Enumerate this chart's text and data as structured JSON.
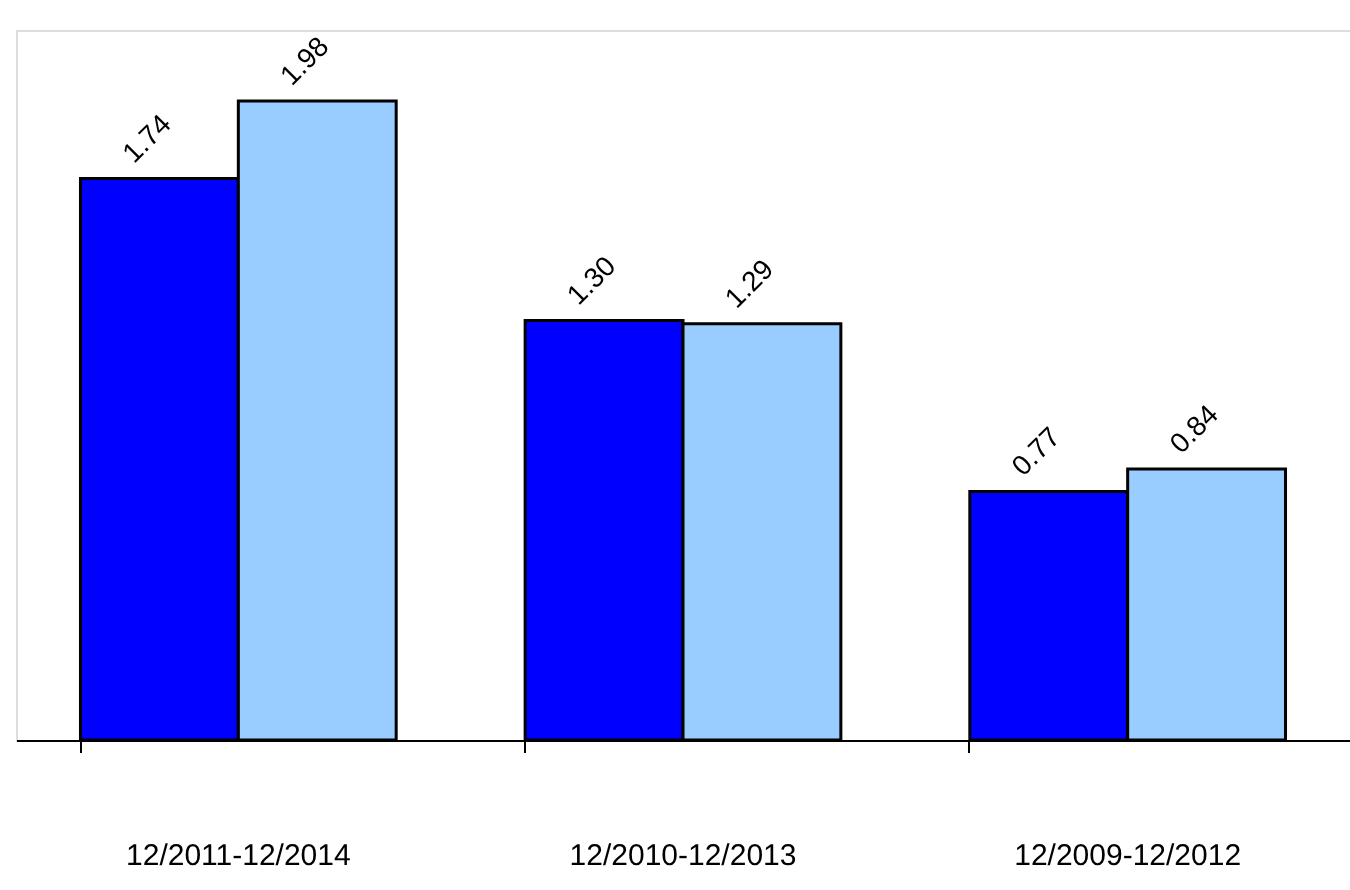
{
  "chart_data": {
    "type": "bar",
    "categories": [
      "12/2011-12/2014",
      "12/2010-12/2013",
      "12/2009-12/2012"
    ],
    "ylim": [
      0,
      2.2
    ],
    "series": [
      {
        "color": "#0000ff",
        "values": [
          1.74,
          1.3,
          0.77
        ],
        "value_labels": [
          "1.74",
          "1.30",
          "0.77"
        ]
      },
      {
        "color": "#99ccff",
        "values": [
          1.98,
          1.29,
          0.84
        ],
        "value_labels": [
          "1.98",
          "1.29",
          "0.84"
        ]
      }
    ],
    "legend": false
  }
}
